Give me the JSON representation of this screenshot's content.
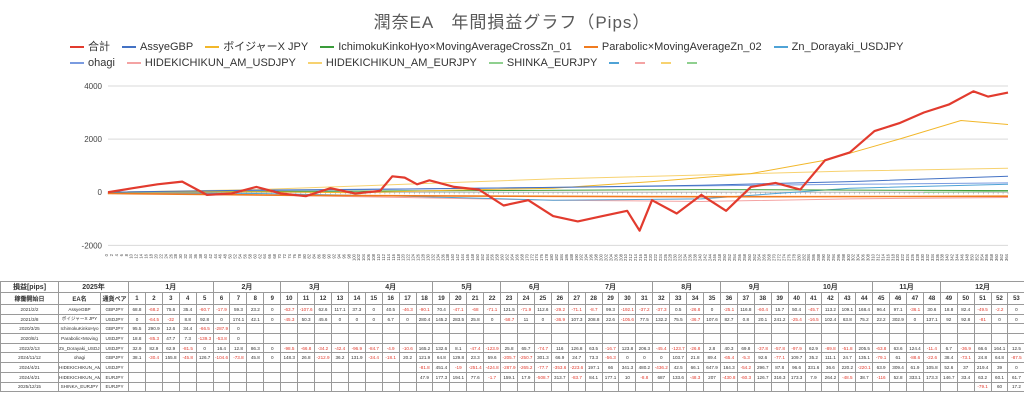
{
  "chart_data": {
    "type": "line",
    "title": "潤奈EA　年間損益グラフ（Pips）",
    "y_ticks": [
      4000,
      2000,
      0,
      -2000
    ],
    "ylim": [
      -2100,
      4300
    ],
    "x_range": [
      0,
      364
    ],
    "x_tick_step": 2,
    "grid": "horizontal",
    "legend_position": "top",
    "series": [
      {
        "name": "合計",
        "color": "#e23b2e",
        "width": 2.2,
        "x": [
          0,
          10,
          20,
          30,
          40,
          50,
          60,
          70,
          80,
          90,
          100,
          110,
          115,
          120,
          125,
          130,
          140,
          150,
          160,
          170,
          180,
          190,
          200,
          210,
          215,
          220,
          230,
          240,
          250,
          260,
          270,
          280,
          290,
          300,
          310,
          320,
          330,
          340,
          350,
          356,
          364
        ],
        "y": [
          0,
          150,
          300,
          400,
          -100,
          -50,
          200,
          -50,
          -150,
          150,
          -50,
          50,
          600,
          550,
          300,
          450,
          200,
          100,
          -500,
          -300,
          -900,
          -1100,
          -900,
          -700,
          -1450,
          -300,
          -800,
          -100,
          -700,
          200,
          350,
          100,
          1200,
          1500,
          2300,
          2600,
          3000,
          3300,
          3800,
          3600,
          3750
        ]
      },
      {
        "name": "AssyeGBP",
        "color": "#4472c4",
        "width": 1,
        "x": [
          0,
          60,
          120,
          180,
          240,
          300,
          364
        ],
        "y": [
          0,
          80,
          120,
          180,
          260,
          400,
          600
        ]
      },
      {
        "name": "ボイジャーX JPY",
        "color": "#f2b72a",
        "width": 1,
        "x": [
          0,
          60,
          100,
          140,
          180,
          220,
          260,
          290,
          320,
          345,
          364
        ],
        "y": [
          0,
          20,
          -20,
          80,
          150,
          400,
          700,
          1200,
          2000,
          2700,
          2550
        ]
      },
      {
        "name": "IchimokuKinkoHyo×MovingAverageCrossZn_01",
        "color": "#3a9c3a",
        "width": 1,
        "x": [
          0,
          120,
          240,
          364
        ],
        "y": [
          0,
          50,
          100,
          60
        ]
      },
      {
        "name": "Parabolic×MovingAverageZn_02",
        "color": "#f07b1f",
        "width": 1.6,
        "x": [
          0,
          80,
          160,
          240,
          320,
          364
        ],
        "y": [
          -50,
          -120,
          -150,
          -170,
          -160,
          -150
        ]
      },
      {
        "name": "Zn_Dorayaki_USDJPY",
        "color": "#4fa3d6",
        "width": 1,
        "x": [
          0,
          60,
          120,
          180,
          240,
          300,
          364
        ],
        "y": [
          0,
          -50,
          -150,
          -300,
          -250,
          150,
          300
        ]
      },
      {
        "name": "ohagi",
        "color": "#7a9be0",
        "width": 1,
        "x": [
          0,
          100,
          200,
          300,
          364
        ],
        "y": [
          0,
          100,
          200,
          300,
          350
        ]
      },
      {
        "name": "HIDEKICHIKUN_AM_USDJPY",
        "color": "#f4a3a3",
        "width": 1,
        "x": [
          0,
          60,
          120,
          180,
          240,
          300,
          364
        ],
        "y": [
          0,
          -100,
          -200,
          -300,
          -350,
          -250,
          -200
        ]
      },
      {
        "name": "HIDEKICHIKUN_AM_EURJPY",
        "color": "#f7d270",
        "width": 1,
        "x": [
          0,
          60,
          120,
          180,
          240,
          300,
          364
        ],
        "y": [
          0,
          100,
          300,
          500,
          650,
          800,
          900
        ]
      },
      {
        "name": "SHINKA_EURJPY",
        "color": "#8fd08f",
        "width": 1,
        "x": [
          330,
          364
        ],
        "y": [
          0,
          40
        ]
      }
    ],
    "extra_legend_swatches": [
      "#4fa3d6",
      "#f4a3a3",
      "#f7d270",
      "#8fd08f"
    ]
  },
  "table": {
    "corner_label": "損益[pips]",
    "year": "2025年",
    "sub_label": "稼働開始日",
    "ea_label": "EA名",
    "pair_label": "通貨ペア",
    "months": [
      {
        "name": "1月",
        "span": 5
      },
      {
        "name": "2月",
        "span": 4
      },
      {
        "name": "3月",
        "span": 4
      },
      {
        "name": "4月",
        "span": 5
      },
      {
        "name": "5月",
        "span": 4
      },
      {
        "name": "6月",
        "span": 4
      },
      {
        "name": "7月",
        "span": 5
      },
      {
        "name": "8月",
        "span": 4
      },
      {
        "name": "9月",
        "span": 4
      },
      {
        "name": "10月",
        "span": 5
      },
      {
        "name": "11月",
        "span": 4
      },
      {
        "name": "12月",
        "span": 5
      }
    ],
    "weeks": [
      "1",
      "2",
      "3",
      "4",
      "5",
      "6",
      "7",
      "8",
      "9",
      "10",
      "11",
      "12",
      "13",
      "14",
      "15",
      "16",
      "17",
      "18",
      "19",
      "20",
      "21",
      "22",
      "23",
      "24",
      "25",
      "26",
      "27",
      "28",
      "29",
      "30",
      "31",
      "32",
      "33",
      "34",
      "35",
      "36",
      "37",
      "38",
      "39",
      "40",
      "41",
      "42",
      "43",
      "44",
      "45",
      "46",
      "47",
      "48",
      "49",
      "50",
      "51",
      "52",
      "53"
    ],
    "rows": [
      {
        "date": "2021/2/2",
        "ea": "AssyeGBP",
        "pair": "GBPJPY",
        "v": [
          "68.8",
          "-68.2",
          "75.6",
          "35.4",
          "-60.7",
          "-17.9",
          "59.3",
          "23.2",
          "0",
          "-63.7",
          "-107.6",
          "62.6",
          "117.1",
          "37.3",
          "0",
          "40.5",
          "-46.3",
          "-90.1",
          "70.4",
          "-47.1",
          "-68",
          "-71.1",
          "121.5",
          "-71.9",
          "112.6",
          "-29.2",
          "-71.1",
          "-8.7",
          "99.3",
          "-192.1",
          "-37.2",
          "-37.3",
          "0.5",
          "-26.8",
          "0",
          "-25.1",
          "116.8",
          "-60.4",
          "15.7",
          "50.4",
          "-45.7",
          "113.2",
          "109.1",
          "168.4",
          "96.4",
          "97.1",
          "-36.1",
          "30.6",
          "18.8",
          "82.4",
          "-49.5",
          "-2.2",
          "0"
        ]
      },
      {
        "date": "2021/3/8",
        "ea": "ボイジャーX JPY",
        "pair": "USDJPY",
        "v": [
          "0",
          "-64.5",
          "-32",
          "8.8",
          "92.8",
          "0",
          "174.1",
          "42.1",
          "0",
          "-45.3",
          "50.3",
          "45.6",
          "0",
          "0",
          "0",
          "6.7",
          "0",
          "280.4",
          "145.2",
          "283.5",
          "25.8",
          "0",
          "-58.7",
          "11",
          "0",
          "-36.9",
          "107.3",
          "208.8",
          "22.6",
          "-105.6",
          "77.5",
          "132.2",
          "75.5",
          "-36.7",
          "107.6",
          "82.7",
          "0.8",
          "20.1",
          "241.2",
          "-25.4",
          "-16.5",
          "102.4",
          "63.8",
          "75.2",
          "22.2",
          "302.9",
          "0",
          "137.1",
          "92",
          "92.8",
          "-81",
          "0",
          "0"
        ]
      },
      {
        "date": "2020/3/25",
        "ea": "IchimokuKinkoHyo",
        "pair": "GBPJPY",
        "v": [
          "95.5",
          "290.9",
          "12.6",
          "34.4",
          "-66.5",
          "-287.9",
          "0",
          "",
          "",
          "",
          "",
          "",
          "",
          "",
          "",
          "",
          "",
          "",
          "",
          "",
          "",
          "",
          "",
          "",
          "",
          "",
          "",
          "",
          "",
          "",
          "",
          "",
          "",
          "",
          "",
          "",
          "",
          "",
          "",
          "",
          "",
          "",
          "",
          "",
          "",
          "",
          "",
          "",
          "",
          "",
          "",
          "",
          ""
        ]
      },
      {
        "date": "2020/8/1",
        "ea": "Parabolic×Moving",
        "pair": "USDJPY",
        "v": [
          "18.8",
          "-85.3",
          "47.7",
          "7.3",
          "-139.3",
          "-53.8",
          "0",
          "",
          "",
          "",
          "",
          "",
          "",
          "",
          "",
          "",
          "",
          "",
          "",
          "",
          "",
          "",
          "",
          "",
          "",
          "",
          "",
          "",
          "",
          "",
          "",
          "",
          "",
          "",
          "",
          "",
          "",
          "",
          "",
          "",
          "",
          "",
          "",
          "",
          "",
          "",
          "",
          "",
          "",
          "",
          "",
          "",
          ""
        ]
      },
      {
        "date": "2022/2/13",
        "ea": "Zn_Dorayaki_USDJPY",
        "pair": "USDJPY",
        "v": [
          "32.9",
          "82.9",
          "62.9",
          "-81.5",
          "0",
          "16.4",
          "12.8",
          "86.3",
          "0",
          "-98.5",
          "-66.8",
          "-34.2",
          "-42.4",
          "-96.9",
          "-84.7",
          "-4.9",
          "-10.6",
          "165.2",
          "132.6",
          "8.1",
          "-47.4",
          "-123.9",
          "25.8",
          "65.7",
          "-74.7",
          "116",
          "126.8",
          "63.5",
          "-16.7",
          "123.8",
          "206.3",
          "-45.4",
          "-123.7",
          "-26.8",
          "2.8",
          "40.3",
          "69.8",
          "-37.8",
          "-57.8",
          "-97.9",
          "62.9",
          "-89.8",
          "-51.8",
          "205.5",
          "-63.8",
          "63.6",
          "124.4",
          "-11.4",
          "6.7",
          "-36.9",
          "66.6",
          "164.1",
          "12.5"
        ]
      },
      {
        "date": "2024/11/12",
        "ea": "ohagi",
        "pair": "GBPJPY",
        "v": [
          "38.1",
          "-30.4",
          "155.8",
          "-45.8",
          "126.7",
          "-104.6",
          "-73.8",
          "45.8",
          "0",
          "148.3",
          "26.8",
          "-212.9",
          "36.2",
          "131.9",
          "-34.4",
          "-18.1",
          "20.2",
          "121.9",
          "64.8",
          "129.8",
          "23.3",
          "59.6",
          "-205.7",
          "-250.7",
          "301.3",
          "66.9",
          "24.7",
          "73.3",
          "-56.3",
          "0",
          "0",
          "0",
          "103.7",
          "21.8",
          "89.4",
          "-65.4",
          "-5.3",
          "92.6",
          "-77.1",
          "109.7",
          "35.2",
          "111.1",
          "24.7",
          "135.1",
          "-79.1",
          "61",
          "-88.6",
          "-22.6",
          "38.4",
          "-73.1",
          "24.8",
          "64.8",
          "-87.5"
        ]
      },
      {
        "date": "2024/4/21",
        "ea": "HIDEKICHIKUN_AM_",
        "pair": "USDJPY",
        "v": [
          "",
          "",
          "",
          "",
          "",
          "",
          "",
          "",
          "",
          "",
          "",
          "",
          "",
          "",
          "",
          "",
          "",
          "-81.8",
          "451.4",
          "-19",
          "-251.4",
          "-424.8",
          "-287.9",
          "-265.2",
          "-77.7",
          "-353.6",
          "-223.6",
          "197.1",
          "66",
          "341.3",
          "480.2",
          "-436.2",
          "42.5",
          "66.1",
          "647.9",
          "164.3",
          "-54.2",
          "296.7",
          "87.8",
          "96.6",
          "331.6",
          "36.6",
          "220.2",
          "-220.1",
          "63.9",
          "309.4",
          "61.9",
          "105.8",
          "52.6",
          "37",
          "219.4",
          "39",
          "0"
        ]
      },
      {
        "date": "2024/4/21",
        "ea": "HIDEKICHIKUN_AM_",
        "pair": "EURJPY",
        "v": [
          "",
          "",
          "",
          "",
          "",
          "",
          "",
          "",
          "",
          "",
          "",
          "",
          "",
          "",
          "",
          "",
          "",
          "47.9",
          "177.3",
          "194.1",
          "77.6",
          "-1.7",
          "159.1",
          "17.9",
          "-508.7",
          "313.7",
          "-83.7",
          "84.1",
          "177.1",
          "10",
          "-8.8",
          "687",
          "133.6",
          "-48.3",
          "207",
          "-430.8",
          "-60.3",
          "126.7",
          "316.3",
          "173.3",
          "7.9",
          "264.2",
          "-48.5",
          "38.7",
          "-116",
          "52.8",
          "333.1",
          "173.3",
          "146.7",
          "33.4",
          "63.2",
          "60.1",
          "61.7"
        ]
      },
      {
        "date": "2025/12/15",
        "ea": "SHINKA_EURJPY",
        "pair": "EURJPY",
        "v": [
          "",
          "",
          "",
          "",
          "",
          "",
          "",
          "",
          "",
          "",
          "",
          "",
          "",
          "",
          "",
          "",
          "",
          "",
          "",
          "",
          "",
          "",
          "",
          "",
          "",
          "",
          "",
          "",
          "",
          "",
          "",
          "",
          "",
          "",
          "",
          "",
          "",
          "",
          "",
          "",
          "",
          "",
          "",
          "",
          "",
          "",
          "",
          "",
          "",
          "",
          "-79.1",
          "60",
          "17.2"
        ]
      }
    ]
  }
}
